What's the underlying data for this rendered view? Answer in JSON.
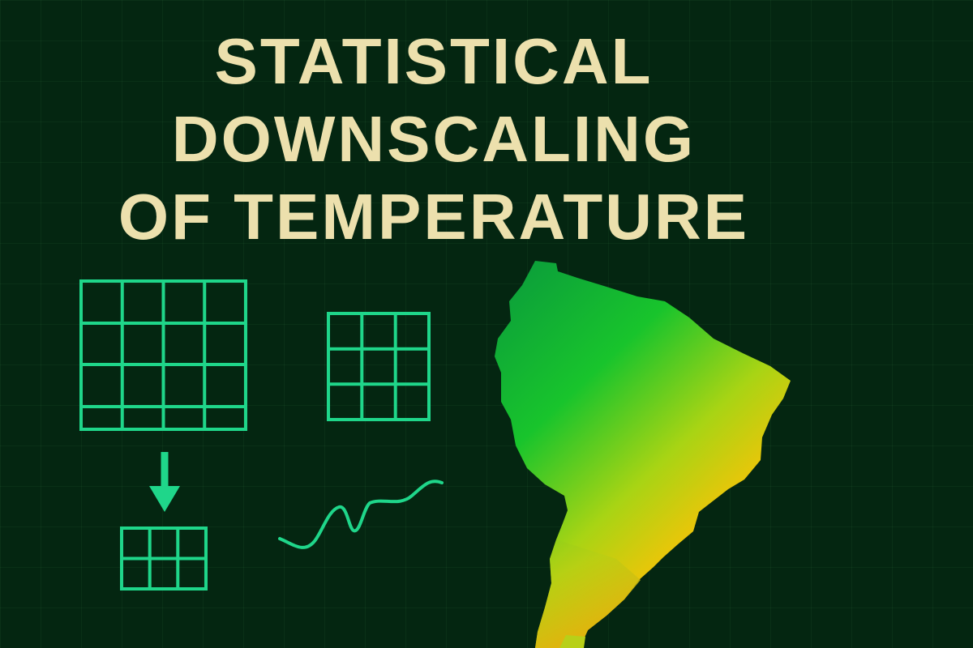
{
  "title": {
    "lines": [
      "STATISTICAL",
      "DOWNSCALING",
      "OF TEMPERATURE"
    ]
  },
  "colors": {
    "background": "#042611",
    "title_text": "#ece0ad",
    "diagram_stroke": "#1fd68a",
    "map_gradient": [
      "#0a9a3c",
      "#18c42c",
      "#a8d414",
      "#f2c408",
      "#f07818"
    ]
  },
  "diagram": {
    "large_grid": {
      "cols": 4,
      "rows": 4
    },
    "medium_grid": {
      "cols": 3,
      "rows": 3
    },
    "small_grid": {
      "cols": 3,
      "rows": 2
    },
    "arrow_direction": "down",
    "icons": [
      "large-grid-icon",
      "medium-grid-icon",
      "down-arrow-icon",
      "small-grid-icon",
      "wave-curve-icon",
      "south-america-map-icon"
    ]
  }
}
